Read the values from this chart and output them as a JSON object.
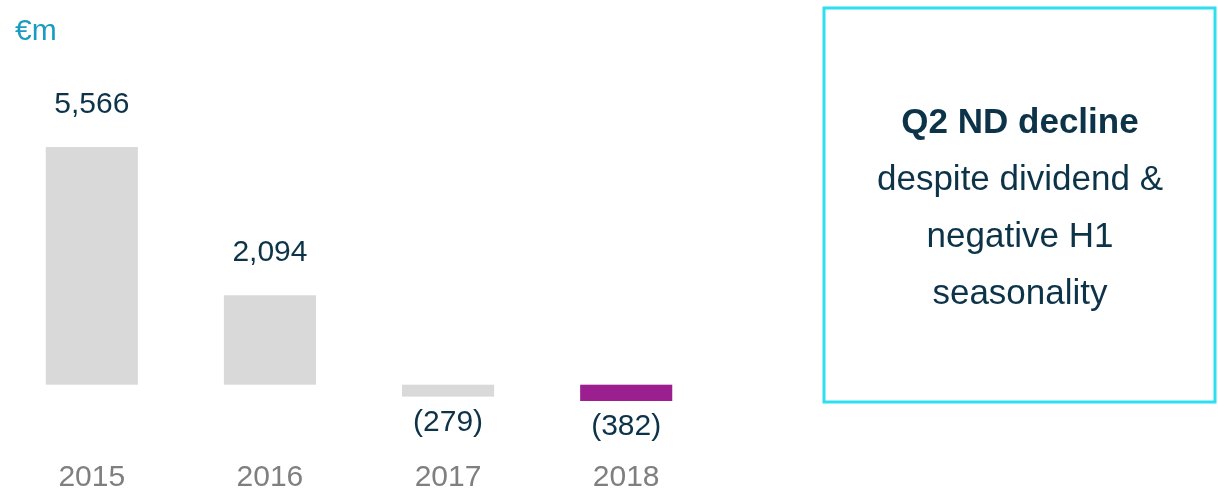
{
  "chart_data": {
    "type": "bar",
    "ylabel": "€m",
    "categories": [
      "2015",
      "2016",
      "2017",
      "2018"
    ],
    "values": [
      5566,
      2094,
      -279,
      -382
    ],
    "colors": [
      "#d9d9d9",
      "#d9d9d9",
      "#d9d9d9",
      "#9b1f8f"
    ],
    "value_labels": [
      "5,566",
      "2,094",
      "(279)",
      "(382)"
    ],
    "annotations": [
      "Q2 ND decline",
      "despite dividend &",
      "negative H1",
      "seasonality"
    ]
  }
}
